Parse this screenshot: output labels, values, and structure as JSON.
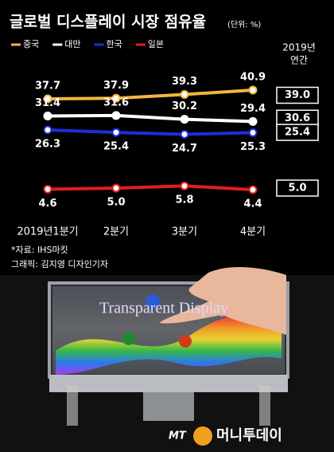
{
  "chart_data": {
    "type": "line",
    "title": "글로벌 디스플레이 시장 점유율",
    "unit": "(단위: %)",
    "categories": [
      "2019년1분기",
      "2분기",
      "3분기",
      "4분기"
    ],
    "series": [
      {
        "name": "중국",
        "color": "#f2b53e",
        "values": [
          37.7,
          37.9,
          39.3,
          40.9
        ],
        "value_labels": [
          "37.7",
          "37.9",
          "39.3",
          "40.9"
        ],
        "annual": 39.0,
        "annual_label": "39.0"
      },
      {
        "name": "대만",
        "color": "#ffffff",
        "values": [
          31.4,
          31.6,
          30.2,
          29.4
        ],
        "value_labels": [
          "31.4",
          "31.6",
          "30.2",
          "29.4"
        ],
        "annual": 30.6,
        "annual_label": "30.6"
      },
      {
        "name": "한국",
        "color": "#1c2fd8",
        "values": [
          26.3,
          25.4,
          24.7,
          25.3
        ],
        "value_labels": [
          "26.3",
          "25.4",
          "24.7",
          "25.3"
        ],
        "annual": 25.4,
        "annual_label": "25.4"
      },
      {
        "name": "일본",
        "color": "#e31c1c",
        "values": [
          4.6,
          5.0,
          5.8,
          4.4
        ],
        "value_labels": [
          "4.6",
          "5.0",
          "5.8",
          "4.4"
        ],
        "annual": 5.0,
        "annual_label": "5.0"
      }
    ],
    "annual_header": [
      "2019년",
      "연간"
    ],
    "source": "*자료: IHS마킷",
    "credit": "그래픽: 김지영 디자인기자"
  },
  "photo": {
    "caption": "Transparent Display"
  },
  "logo": {
    "mark": "MT",
    "name": "머니투데이"
  }
}
